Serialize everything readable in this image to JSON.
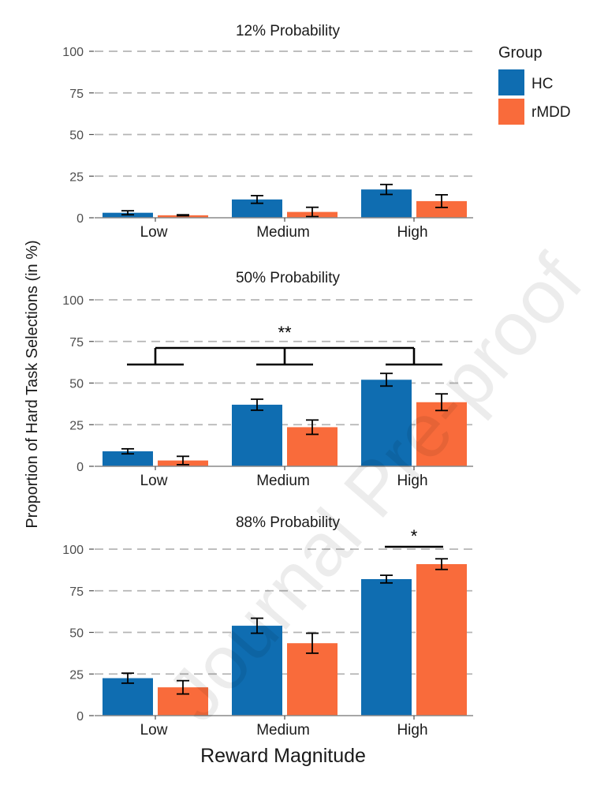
{
  "chart_data": {
    "type": "bar",
    "ylabel": "Proportion of Hard Task Selections (in %)",
    "xlabel": "Reward Magnitude",
    "categories": [
      "Low",
      "Medium",
      "High"
    ],
    "ylim": [
      0,
      100
    ],
    "yticks": [
      0,
      25,
      50,
      75,
      100
    ],
    "grid": "horizontal dashed",
    "legend": {
      "title": "Group",
      "placement": "top-right",
      "entries": [
        {
          "name": "HC",
          "color": "#0f6db1"
        },
        {
          "name": "rMDD",
          "color": "#f96b3b"
        }
      ]
    },
    "panels": [
      {
        "title": "12% Probability",
        "series": [
          {
            "name": "HC",
            "values": [
              3,
              11,
              17
            ],
            "errors": [
              1.2,
              2.3,
              3
            ]
          },
          {
            "name": "rMDD",
            "values": [
              1.5,
              3.5,
              10
            ],
            "errors": [
              0.3,
              2.8,
              3.8
            ]
          }
        ],
        "annotations": []
      },
      {
        "title": "50% Probability",
        "series": [
          {
            "name": "HC",
            "values": [
              9,
              37,
              52
            ],
            "errors": [
              1.5,
              3.3,
              3.8
            ]
          },
          {
            "name": "rMDD",
            "values": [
              3.5,
              23.5,
              38.5
            ],
            "errors": [
              2.5,
              4.3,
              5
            ]
          }
        ],
        "annotations": [
          {
            "type": "bracket-3way",
            "label": "**"
          }
        ]
      },
      {
        "title": "88% Probability",
        "series": [
          {
            "name": "HC",
            "values": [
              22.5,
              54,
              82
            ],
            "errors": [
              3,
              4.5,
              2.3
            ]
          },
          {
            "name": "rMDD",
            "values": [
              17,
              43.5,
              91
            ],
            "errors": [
              4,
              6,
              3.2
            ]
          }
        ],
        "annotations": [
          {
            "type": "bracket-pair",
            "category": "High",
            "label": "*"
          }
        ]
      }
    ]
  },
  "watermark": "Journal Pre-proof"
}
